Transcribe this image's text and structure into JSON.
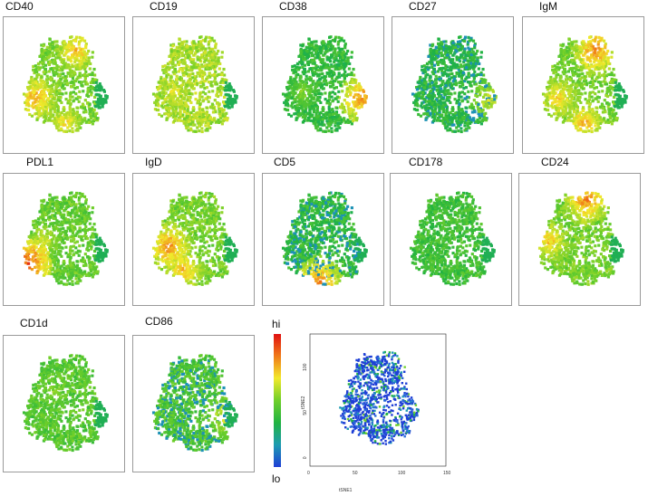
{
  "chart_data": {
    "type": "scatter",
    "colorbar": {
      "hi_label": "hi",
      "lo_label": "lo"
    },
    "panels": [
      {
        "marker": "CD40"
      },
      {
        "marker": "CD19"
      },
      {
        "marker": "CD38"
      },
      {
        "marker": "CD27"
      },
      {
        "marker": "IgM"
      },
      {
        "marker": "PDL1"
      },
      {
        "marker": "IgD"
      },
      {
        "marker": "CD5"
      },
      {
        "marker": "CD178"
      },
      {
        "marker": "CD24"
      },
      {
        "marker": "CD1d"
      },
      {
        "marker": "CD86"
      }
    ],
    "tsne": {
      "xlabel": "tSNE1",
      "ylabel": "tSNE2",
      "x_ticks": [
        "0",
        "50",
        "100",
        "150"
      ],
      "y_ticks": [
        "0",
        "50",
        "100"
      ],
      "xlim": [
        0,
        150
      ],
      "ylim": [
        -10,
        140
      ]
    }
  }
}
